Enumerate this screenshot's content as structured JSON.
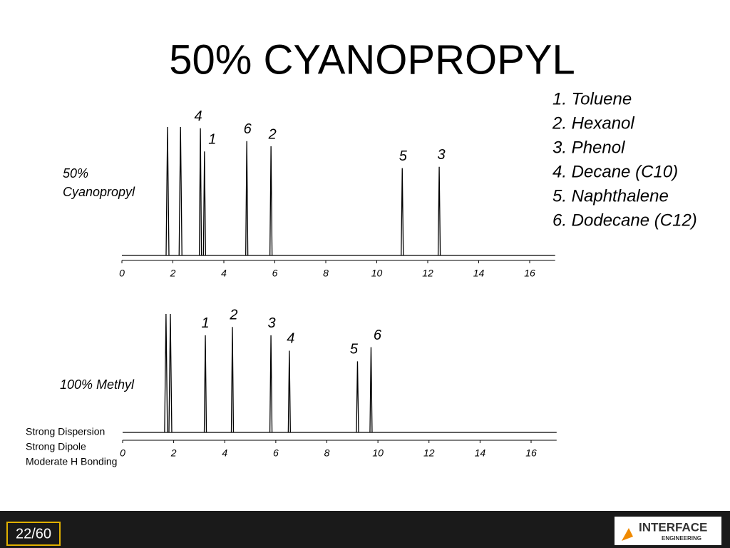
{
  "title": "50% CYANOPROPYL",
  "compound_list": [
    "1. Toluene",
    "2. Hexanol",
    "3. Phenol",
    "4. Decane (C10)",
    "5. Naphthalene",
    "6. Dodecane (C12)"
  ],
  "charts": [
    {
      "label_lines": [
        "50%",
        "Cyanopropyl"
      ],
      "xlim": [
        0,
        17
      ],
      "xticks": [
        0,
        2,
        4,
        6,
        8,
        10,
        12,
        14,
        16
      ],
      "ylim": [
        0,
        100
      ],
      "solvent_peaks": [
        {
          "x": 1.79,
          "height": 100
        },
        {
          "x": 2.3,
          "height": 100
        }
      ],
      "peaks": [
        {
          "label": "4",
          "x": 3.08,
          "height": 99
        },
        {
          "label": "1",
          "x": 3.24,
          "height": 81
        },
        {
          "label": "6",
          "x": 4.9,
          "height": 89
        },
        {
          "label": "2",
          "x": 5.85,
          "height": 85
        },
        {
          "label": "5",
          "x": 11.0,
          "height": 68
        },
        {
          "label": "3",
          "x": 12.45,
          "height": 69
        }
      ]
    },
    {
      "label_lines": [
        "100% Methyl"
      ],
      "xlim": [
        0,
        17
      ],
      "xticks": [
        0,
        2,
        4,
        6,
        8,
        10,
        12,
        14,
        16
      ],
      "ylim": [
        0,
        100
      ],
      "solvent_peaks": [
        {
          "x": 1.7,
          "height": 100
        },
        {
          "x": 1.87,
          "height": 100
        }
      ],
      "peaks": [
        {
          "label": "1",
          "x": 3.24,
          "height": 82
        },
        {
          "label": "2",
          "x": 4.3,
          "height": 89
        },
        {
          "label": "3",
          "x": 5.81,
          "height": 82
        },
        {
          "label": "4",
          "x": 6.53,
          "height": 69
        },
        {
          "label": "5",
          "x": 9.2,
          "height": 60
        },
        {
          "label": "6",
          "x": 9.73,
          "height": 72
        }
      ]
    }
  ],
  "phase_notes": [
    "Strong Dispersion",
    "Strong Dipole",
    "Moderate H Bonding"
  ],
  "footer": {
    "page": "22/60",
    "logo_main": "INTERFACE",
    "logo_sub": "ENGINEERING"
  }
}
